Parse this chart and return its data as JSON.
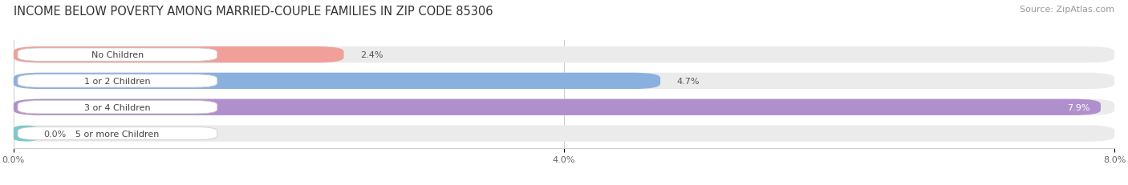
{
  "title": "INCOME BELOW POVERTY AMONG MARRIED-COUPLE FAMILIES IN ZIP CODE 85306",
  "source": "Source: ZipAtlas.com",
  "categories": [
    "No Children",
    "1 or 2 Children",
    "3 or 4 Children",
    "5 or more Children"
  ],
  "values": [
    2.4,
    4.7,
    7.9,
    0.0
  ],
  "max_value": 8.0,
  "bar_colors": [
    "#f0a099",
    "#8ab0e0",
    "#b090cc",
    "#7ec8c8"
  ],
  "bar_bg_color": "#ebebeb",
  "label_bg_color": "#ffffff",
  "tick_labels": [
    "0.0%",
    "4.0%",
    "8.0%"
  ],
  "tick_values": [
    0.0,
    4.0,
    8.0
  ],
  "title_fontsize": 10.5,
  "source_fontsize": 8,
  "bar_label_fontsize": 8,
  "value_label_fontsize": 8,
  "tick_fontsize": 8,
  "background_color": "#ffffff",
  "value_label_colors": [
    "#555555",
    "#555555",
    "#ffffff",
    "#555555"
  ]
}
